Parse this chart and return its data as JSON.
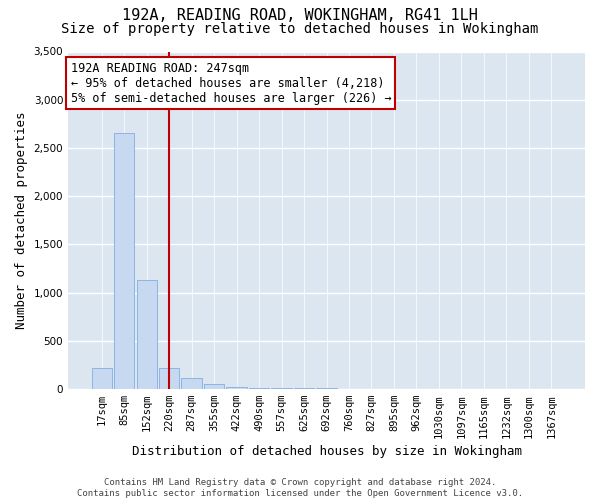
{
  "title": "192A, READING ROAD, WOKINGHAM, RG41 1LH",
  "subtitle": "Size of property relative to detached houses in Wokingham",
  "xlabel": "Distribution of detached houses by size in Wokingham",
  "ylabel": "Number of detached properties",
  "categories": [
    "17sqm",
    "85sqm",
    "152sqm",
    "220sqm",
    "287sqm",
    "355sqm",
    "422sqm",
    "490sqm",
    "557sqm",
    "625sqm",
    "692sqm",
    "760sqm",
    "827sqm",
    "895sqm",
    "962sqm",
    "1030sqm",
    "1097sqm",
    "1165sqm",
    "1232sqm",
    "1300sqm",
    "1367sqm"
  ],
  "values": [
    220,
    2650,
    1130,
    220,
    110,
    55,
    20,
    10,
    8,
    6,
    5,
    4,
    3,
    3,
    3,
    2,
    2,
    2,
    1,
    1,
    1
  ],
  "bar_color": "#c6d9f1",
  "bar_edge_color": "#8db4e2",
  "vline_color": "#c00000",
  "vline_x_index": 3.0,
  "annotation_text": "192A READING ROAD: 247sqm\n← 95% of detached houses are smaller (4,218)\n5% of semi-detached houses are larger (226) →",
  "annotation_box_color": "#c00000",
  "ylim": [
    0,
    3500
  ],
  "yticks": [
    0,
    500,
    1000,
    1500,
    2000,
    2500,
    3000,
    3500
  ],
  "footer": "Contains HM Land Registry data © Crown copyright and database right 2024.\nContains public sector information licensed under the Open Government Licence v3.0.",
  "background_color": "#ffffff",
  "plot_bg_color": "#dce6f1",
  "grid_color": "#ffffff",
  "title_fontsize": 11,
  "subtitle_fontsize": 10,
  "tick_fontsize": 7.5,
  "ylabel_fontsize": 9,
  "xlabel_fontsize": 9,
  "annotation_fontsize": 8.5
}
